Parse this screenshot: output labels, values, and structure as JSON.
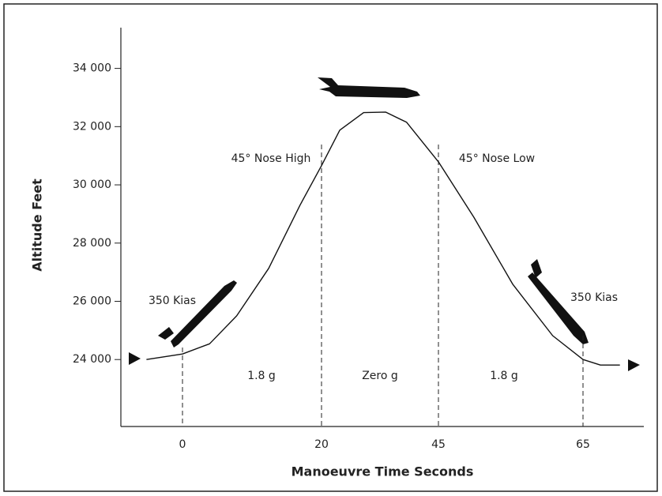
{
  "chart_data": {
    "type": "line",
    "xlabel": "Manoeuvre Time Seconds",
    "ylabel": "Altitude Feet",
    "x": [
      -5.2,
      0,
      3.9,
      7.8,
      12.4,
      16.9,
      20,
      23.9,
      29,
      33.7,
      38.2,
      45,
      49.9,
      55.3,
      60.8,
      65,
      67.4,
      70.1
    ],
    "values": [
      24000,
      24190,
      24540,
      25500,
      27130,
      29300,
      30660,
      31880,
      32480,
      32500,
      32150,
      30790,
      28890,
      26580,
      24820,
      24000,
      23810,
      23810
    ],
    "color": "#111111",
    "xlim": [
      -8.9,
      73.4
    ],
    "xticks": [
      0,
      20,
      45,
      65
    ],
    "ylim": [
      21700,
      35400
    ],
    "yticks": [
      {
        "value": 24000,
        "label": "24 000"
      },
      {
        "value": 26000,
        "label": "26 000"
      },
      {
        "value": 28000,
        "label": "28 000"
      },
      {
        "value": 30000,
        "label": "30 000"
      },
      {
        "value": 32000,
        "label": "32 000"
      },
      {
        "value": 34000,
        "label": "34 000"
      }
    ],
    "annotations": [
      "45° Nose High",
      "45° Nose Low",
      "350 Kias",
      "350 Kias",
      "1.8 g",
      "Zero g",
      "1.8 g"
    ]
  }
}
